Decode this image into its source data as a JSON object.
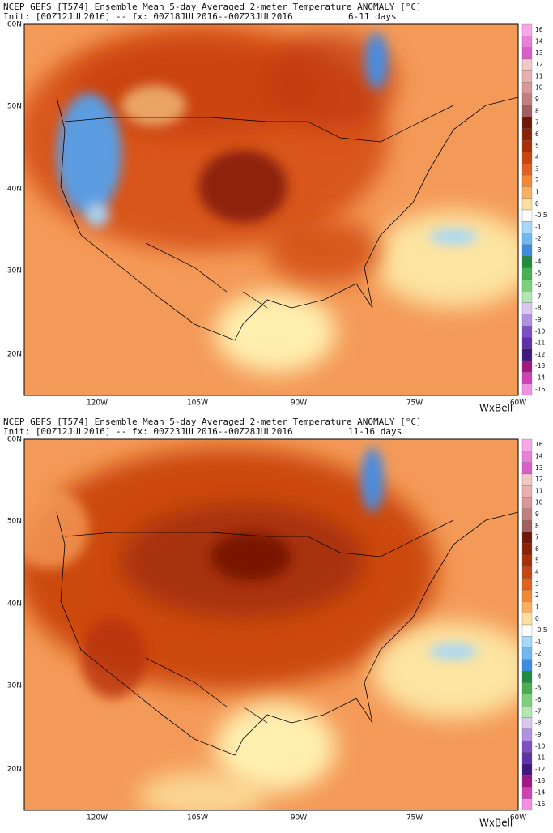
{
  "panels": [
    {
      "title": "NCEP GEFS [T574] Ensemble Mean 5-day Averaged 2-meter Temperature ANOMALY [°C]",
      "init": "Init: [00Z12JUL2016] -- fx: 00Z18JUL2016--00Z23JUL2016",
      "range": "6-11 days",
      "lat_labels": [
        "60N",
        "50N",
        "40N",
        "30N",
        "20N"
      ],
      "lon_labels": [
        "120W",
        "105W",
        "90W",
        "75W",
        "60W"
      ],
      "colorbar_labels": [
        "16",
        "14",
        "13",
        "12",
        "11",
        "10",
        "9",
        "8",
        "7",
        "6",
        "5",
        "4",
        "3",
        "2",
        "1",
        "0",
        "-0.5",
        "-1",
        "-2",
        "-3",
        "-4",
        "-5",
        "-6",
        "-7",
        "-8",
        "-9",
        "-10",
        "-11",
        "-12",
        "-13",
        "-14",
        "-16"
      ],
      "logo": "WxBell"
    },
    {
      "title": "NCEP GEFS [T574] Ensemble Mean 5-day Averaged 2-meter Temperature ANOMALY [°C]",
      "init": "Init: [00Z12JUL2016] -- fx: 00Z23JUL2016--00Z28JUL2016",
      "range": "11-16 days",
      "lat_labels": [
        "60N",
        "50N",
        "40N",
        "30N",
        "20N"
      ],
      "lon_labels": [
        "120W",
        "105W",
        "90W",
        "75W",
        "60W"
      ],
      "colorbar_labels": [
        "16",
        "14",
        "13",
        "12",
        "11",
        "10",
        "9",
        "8",
        "7",
        "6",
        "5",
        "4",
        "3",
        "2",
        "1",
        "0",
        "-0.5",
        "-1",
        "-2",
        "-3",
        "-4",
        "-5",
        "-6",
        "-7",
        "-8",
        "-9",
        "-10",
        "-11",
        "-12",
        "-13",
        "-14",
        "-16"
      ],
      "logo": "WxBell"
    }
  ]
}
